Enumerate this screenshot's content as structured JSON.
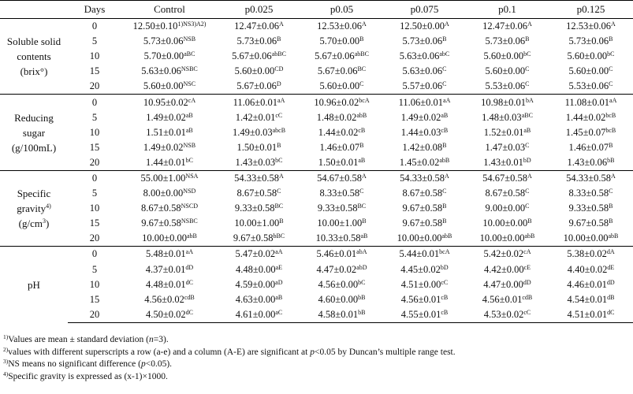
{
  "headers": [
    "",
    "Days",
    "Control",
    "p0.025",
    "p0.05",
    "p0.075",
    "p0.1",
    "p0.125"
  ],
  "groups": [
    {
      "attribute": [
        "Soluble solid",
        "contents",
        "(brix°)"
      ],
      "rows": [
        {
          "day": "0",
          "cells": [
            [
              "12.50±0.10",
              "1)NS3)A2)"
            ],
            [
              "12.47±0.06",
              "A"
            ],
            [
              "12.53±0.06",
              "A"
            ],
            [
              "12.50±0.00",
              "A"
            ],
            [
              "12.47±0.06",
              "A"
            ],
            [
              "12.53±0.06",
              "A"
            ]
          ]
        },
        {
          "day": "5",
          "cells": [
            [
              "5.73±0.06",
              "NSB"
            ],
            [
              "5.73±0.06",
              "B"
            ],
            [
              "5.70±0.00",
              "B"
            ],
            [
              "5.73±0.06",
              "B"
            ],
            [
              "5.73±0.06",
              "B"
            ],
            [
              "5.73±0.06",
              "B"
            ]
          ]
        },
        {
          "day": "10",
          "cells": [
            [
              "5.70±0.00",
              "aBC"
            ],
            [
              "5.67±0.06",
              "abBC"
            ],
            [
              "5.67±0.06",
              "abBC"
            ],
            [
              "5.63±0.06",
              "abC"
            ],
            [
              "5.60±0.00",
              "bC"
            ],
            [
              "5.60±0.00",
              "bC"
            ]
          ]
        },
        {
          "day": "15",
          "cells": [
            [
              "5.63±0.06",
              "NSBC"
            ],
            [
              "5.60±0.00",
              "CD"
            ],
            [
              "5.67±0.06",
              "BC"
            ],
            [
              "5.63±0.06",
              "C"
            ],
            [
              "5.60±0.00",
              "C"
            ],
            [
              "5.60±0.00",
              "C"
            ]
          ]
        },
        {
          "day": "20",
          "cells": [
            [
              "5.60±0.00",
              "NSC"
            ],
            [
              "5.67±0.06",
              "D"
            ],
            [
              "5.60±0.00",
              "C"
            ],
            [
              "5.57±0.06",
              "C"
            ],
            [
              "5.53±0.06",
              "C"
            ],
            [
              "5.53±0.06",
              "C"
            ]
          ]
        }
      ]
    },
    {
      "attribute": [
        "Reducing",
        "sugar",
        "(g/100mL)"
      ],
      "rows": [
        {
          "day": "0",
          "cells": [
            [
              "10.95±0.02",
              "cA"
            ],
            [
              "11.06±0.01",
              "aA"
            ],
            [
              "10.96±0.02",
              "bcA"
            ],
            [
              "11.06±0.01",
              "aA"
            ],
            [
              "10.98±0.01",
              "bA"
            ],
            [
              "11.08±0.01",
              "aA"
            ]
          ]
        },
        {
          "day": "5",
          "cells": [
            [
              "1.49±0.02",
              "aB"
            ],
            [
              "1.42±0.01",
              "cC"
            ],
            [
              "1.48±0.02",
              "abB"
            ],
            [
              "1.49±0.02",
              "aB"
            ],
            [
              "1.48±0.03",
              "aBC"
            ],
            [
              "1.44±0.02",
              "bcB"
            ]
          ]
        },
        {
          "day": "10",
          "cells": [
            [
              "1.51±0.01",
              "aB"
            ],
            [
              "1.49±0.03",
              "abcB"
            ],
            [
              "1.44±0.02",
              "cB"
            ],
            [
              "1.44±0.03",
              "cB"
            ],
            [
              "1.52±0.01",
              "aB"
            ],
            [
              "1.45±0.07",
              "bcB"
            ]
          ]
        },
        {
          "day": "15",
          "cells": [
            [
              "1.49±0.02",
              "NSB"
            ],
            [
              "1.50±0.01",
              "B"
            ],
            [
              "1.46±0.07",
              "B"
            ],
            [
              "1.42±0.08",
              "B"
            ],
            [
              "1.47±0.03",
              "C"
            ],
            [
              "1.46±0.07",
              "B"
            ]
          ]
        },
        {
          "day": "20",
          "cells": [
            [
              "1.44±0.01",
              "bC"
            ],
            [
              "1.43±0.03",
              "bC"
            ],
            [
              "1.50±0.01",
              "aB"
            ],
            [
              "1.45±0.02",
              "abB"
            ],
            [
              "1.43±0.01",
              "bD"
            ],
            [
              "1.43±0.06",
              "bB"
            ]
          ]
        }
      ]
    },
    {
      "attribute": [
        "Specific",
        "gravity",
        "4)",
        "(g/cm",
        "3",
        ")"
      ],
      "rows": [
        {
          "day": "0",
          "cells": [
            [
              "55.00±1.00",
              "NSA"
            ],
            [
              "54.33±0.58",
              "A"
            ],
            [
              "54.67±0.58",
              "A"
            ],
            [
              "54.33±0.58",
              "A"
            ],
            [
              "54.67±0.58",
              "A"
            ],
            [
              "54.33±0.58",
              "A"
            ]
          ]
        },
        {
          "day": "5",
          "cells": [
            [
              "8.00±0.00",
              "NSD"
            ],
            [
              "8.67±0.58",
              "C"
            ],
            [
              "8.33±0.58",
              "C"
            ],
            [
              "8.67±0.58",
              "C"
            ],
            [
              "8.67±0.58",
              "C"
            ],
            [
              "8.33±0.58",
              "C"
            ]
          ]
        },
        {
          "day": "10",
          "cells": [
            [
              "8.67±0.58",
              "NSCD"
            ],
            [
              "9.33±0.58",
              "BC"
            ],
            [
              "9.33±0.58",
              "BC"
            ],
            [
              "9.67±0.58",
              "B"
            ],
            [
              "9.00±0.00",
              "C"
            ],
            [
              "9.33±0.58",
              "B"
            ]
          ]
        },
        {
          "day": "15",
          "cells": [
            [
              "9.67±0.58",
              "NSBC"
            ],
            [
              "10.00±1.00",
              "B"
            ],
            [
              "10.00±1.00",
              "B"
            ],
            [
              "9.67±0.58",
              "B"
            ],
            [
              "10.00±0.00",
              "B"
            ],
            [
              "9.67±0.58",
              "B"
            ]
          ]
        },
        {
          "day": "20",
          "cells": [
            [
              "10.00±0.00",
              "abB"
            ],
            [
              "9.67±0.58",
              "bBC"
            ],
            [
              "10.33±0.58",
              "aB"
            ],
            [
              "10.00±0.00",
              "abB"
            ],
            [
              "10.00±0.00",
              "abB"
            ],
            [
              "10.00±0.00",
              "abB"
            ]
          ]
        }
      ]
    },
    {
      "attribute": [
        "pH"
      ],
      "rows": [
        {
          "day": "0",
          "cells": [
            [
              "5.48±0.01",
              "aA"
            ],
            [
              "5.47±0.02",
              "aA"
            ],
            [
              "5.46±0.01",
              "abA"
            ],
            [
              "5.44±0.01",
              "bcA"
            ],
            [
              "5.42±0.02",
              "cA"
            ],
            [
              "5.38±0.02",
              "dA"
            ]
          ]
        },
        {
          "day": "5",
          "cells": [
            [
              "4.37±0.01",
              "dD"
            ],
            [
              "4.48±0.00",
              "aE"
            ],
            [
              "4.47±0.02",
              "abD"
            ],
            [
              "4.45±0.02",
              "bD"
            ],
            [
              "4.42±0.00",
              "cE"
            ],
            [
              "4.40±0.02",
              "dE"
            ]
          ]
        },
        {
          "day": "10",
          "cells": [
            [
              "4.48±0.01",
              "dC"
            ],
            [
              "4.59±0.00",
              "aD"
            ],
            [
              "4.56±0.00",
              "bC"
            ],
            [
              "4.51±0.00",
              "cC"
            ],
            [
              "4.47±0.00",
              "dD"
            ],
            [
              "4.46±0.01",
              "dD"
            ]
          ]
        },
        {
          "day": "15",
          "cells": [
            [
              "4.56±0.02",
              "cdB"
            ],
            [
              "4.63±0.00",
              "aB"
            ],
            [
              "4.60±0.00",
              "bB"
            ],
            [
              "4.56±0.01",
              "cB"
            ],
            [
              "4.56±0.01",
              "cdB"
            ],
            [
              "4.54±0.01",
              "dB"
            ]
          ]
        },
        {
          "day": "20",
          "cells": [
            [
              "4.50±0.02",
              "dC"
            ],
            [
              "4.61±0.00",
              "aC"
            ],
            [
              "4.58±0.01",
              "bB"
            ],
            [
              "4.55±0.01",
              "cB"
            ],
            [
              "4.53±0.02",
              "cC"
            ],
            [
              "4.51±0.01",
              "dC"
            ]
          ]
        }
      ]
    }
  ],
  "notes": [
    {
      "sup": "1)",
      "parts": [
        "Values are mean ± standard deviation (",
        "n",
        "=3)."
      ]
    },
    {
      "sup": "2)",
      "parts": [
        "values with different superscripts a row (a-e) and a column (A-E) are significant at ",
        "p",
        "<0.05 by Duncan’s multiple range test."
      ]
    },
    {
      "sup": "3)",
      "parts": [
        "NS means no significant difference (",
        "p",
        "<0.05)."
      ]
    },
    {
      "sup": "4)",
      "parts": [
        "Specific gravity is expressed as (x-1)×1000."
      ]
    }
  ]
}
